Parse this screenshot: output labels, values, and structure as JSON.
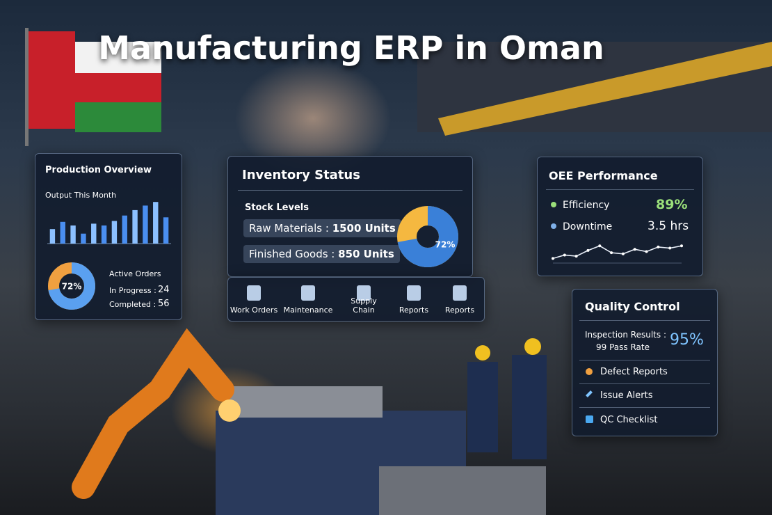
{
  "title": "Manufacturing ERP in Oman",
  "production_overview": {
    "title": "Production Overview",
    "chart_title": "Output This Month",
    "bars": [
      32,
      48,
      40,
      22,
      44,
      40,
      50,
      62,
      74,
      84,
      92,
      58
    ],
    "ylim": [
      0,
      100
    ],
    "donut": {
      "value": 72,
      "value_label": "72%"
    },
    "active_orders": {
      "title": "Active Orders",
      "items": [
        {
          "label": "In Progress :",
          "value": "24"
        },
        {
          "label": "Completed :",
          "value": "56"
        }
      ]
    }
  },
  "inventory_status": {
    "title": "Inventory Status",
    "subtitle": "Stock Levels",
    "items": [
      {
        "label": "Raw Materials :",
        "value": "1500 Units"
      },
      {
        "label": "Finished Goods :",
        "value": "850 Units"
      }
    ],
    "pie": {
      "value": 72,
      "value_label": "72%"
    },
    "modules": [
      "Work Orders",
      "Maintenance",
      "Supply Chain",
      "Reports",
      "Reports"
    ]
  },
  "oee_performance": {
    "title": "OEE Performance",
    "metrics": [
      {
        "label": "Efficiency",
        "value": "89%"
      },
      {
        "label": "Downtime",
        "value": "3.5 hrs"
      }
    ],
    "trend": [
      20,
      35,
      30,
      55,
      75,
      45,
      40,
      60,
      50,
      70,
      65,
      75
    ],
    "ylim": [
      0,
      100
    ]
  },
  "quality_control": {
    "title": "Quality Control",
    "inspection_label": "Inspection Results :",
    "inspection_sub": "99 Pass Rate",
    "inspection_value": "95%",
    "links": [
      "Defect Reports",
      "Issue Alerts",
      "QC Checklist"
    ]
  }
}
